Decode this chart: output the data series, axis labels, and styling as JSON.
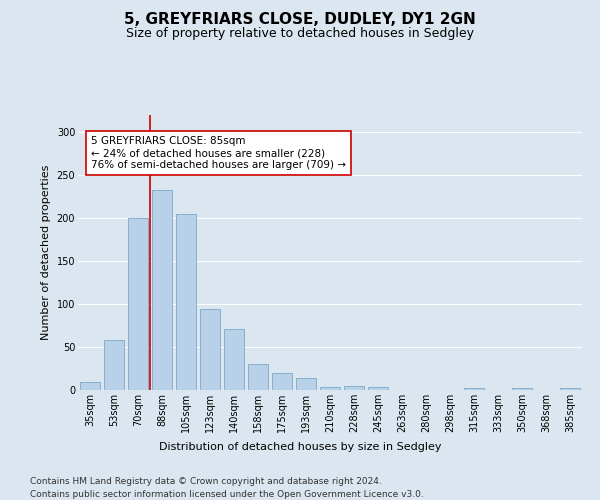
{
  "title": "5, GREYFRIARS CLOSE, DUDLEY, DY1 2GN",
  "subtitle": "Size of property relative to detached houses in Sedgley",
  "xlabel": "Distribution of detached houses by size in Sedgley",
  "ylabel": "Number of detached properties",
  "categories": [
    "35sqm",
    "53sqm",
    "70sqm",
    "88sqm",
    "105sqm",
    "123sqm",
    "140sqm",
    "158sqm",
    "175sqm",
    "193sqm",
    "210sqm",
    "228sqm",
    "245sqm",
    "263sqm",
    "280sqm",
    "298sqm",
    "315sqm",
    "333sqm",
    "350sqm",
    "368sqm",
    "385sqm"
  ],
  "values": [
    9,
    58,
    200,
    233,
    205,
    94,
    71,
    30,
    20,
    14,
    4,
    5,
    3,
    0,
    0,
    0,
    2,
    0,
    2,
    0,
    2
  ],
  "bar_color": "#b8d0e8",
  "bar_edge_color": "#7aaac8",
  "vline_x": 2.5,
  "vline_color": "#cc0000",
  "annotation_text": "5 GREYFRIARS CLOSE: 85sqm\n← 24% of detached houses are smaller (228)\n76% of semi-detached houses are larger (709) →",
  "annotation_box_color": "#ffffff",
  "annotation_box_edge_color": "#cc0000",
  "ylim": [
    0,
    320
  ],
  "yticks": [
    0,
    50,
    100,
    150,
    200,
    250,
    300
  ],
  "footer_line1": "Contains HM Land Registry data © Crown copyright and database right 2024.",
  "footer_line2": "Contains public sector information licensed under the Open Government Licence v3.0.",
  "background_color": "#dce6f0",
  "plot_background_color": "#dce6f0",
  "title_fontsize": 11,
  "subtitle_fontsize": 9,
  "axis_label_fontsize": 8,
  "tick_fontsize": 7,
  "footer_fontsize": 6.5,
  "annotation_fontsize": 7.5
}
